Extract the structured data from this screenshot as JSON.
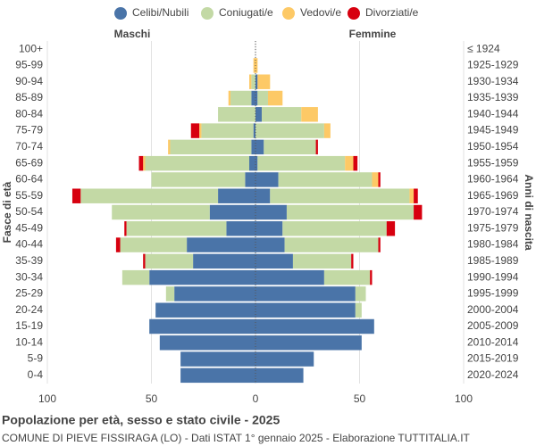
{
  "chart_data": {
    "type": "pyramid",
    "title": "Popolazione per età, sesso e stato civile - 2025",
    "subtitle": "COMUNE DI PIEVE FISSIRAGA (LO) - Dati ISTAT 1° gennaio 2025 - Elaborazione TUTTITALIA.IT",
    "left_label": "Maschi",
    "right_label": "Femmine",
    "y_label": "Fasce di età",
    "y2_label": "Anni di nascita",
    "categories": [
      "100+",
      "95-99",
      "90-94",
      "85-89",
      "80-84",
      "75-79",
      "70-74",
      "65-69",
      "60-64",
      "55-59",
      "50-54",
      "45-49",
      "40-44",
      "35-39",
      "30-34",
      "25-29",
      "20-24",
      "15-19",
      "10-14",
      "5-9",
      "0-4"
    ],
    "birth_years": [
      "≤ 1924",
      "1925-1929",
      "1930-1934",
      "1935-1939",
      "1940-1944",
      "1945-1949",
      "1950-1954",
      "1955-1959",
      "1960-1964",
      "1965-1969",
      "1970-1974",
      "1975-1979",
      "1980-1984",
      "1985-1989",
      "1990-1994",
      "1995-1999",
      "2000-2004",
      "2005-2009",
      "2010-2014",
      "2015-2019",
      "2020-2024"
    ],
    "series": [
      {
        "name": "Celibi/Nubili",
        "color": "#4a74a8",
        "male_values": [
          0,
          0,
          0,
          2,
          0,
          1,
          2,
          3,
          5,
          18,
          22,
          14,
          33,
          30,
          51,
          39,
          48,
          51,
          46,
          36,
          36
        ],
        "female_values": [
          0,
          0,
          1,
          1,
          3,
          0,
          4,
          1,
          11,
          7,
          15,
          13,
          14,
          18,
          33,
          48,
          48,
          57,
          51,
          28,
          23
        ]
      },
      {
        "name": "Coniugati/e",
        "color": "#c3d9a5",
        "male_values": [
          0,
          0,
          2,
          10,
          18,
          25,
          39,
          50,
          45,
          66,
          47,
          48,
          32,
          23,
          13,
          4,
          0,
          0,
          0,
          0,
          0
        ],
        "female_values": [
          0,
          0,
          0,
          5,
          19,
          33,
          25,
          42,
          45,
          67,
          61,
          50,
          45,
          28,
          22,
          5,
          3,
          0,
          0,
          0,
          0
        ]
      },
      {
        "name": "Vedovi/e",
        "color": "#fdc966",
        "male_values": [
          0,
          1,
          1,
          1,
          0,
          1,
          1,
          1,
          0,
          0,
          0,
          0,
          0,
          0,
          0,
          0,
          0,
          0,
          0,
          0,
          0
        ],
        "female_values": [
          0,
          1,
          6,
          7,
          8,
          3,
          0,
          4,
          3,
          2,
          0,
          0,
          0,
          0,
          0,
          0,
          0,
          0,
          0,
          0,
          0
        ]
      },
      {
        "name": "Divorziati/e",
        "color": "#d7000f",
        "male_values": [
          0,
          0,
          0,
          0,
          0,
          4,
          0,
          2,
          0,
          4,
          0,
          1,
          2,
          1,
          0,
          0,
          0,
          0,
          0,
          0,
          0
        ],
        "female_values": [
          0,
          0,
          0,
          0,
          0,
          0,
          1,
          2,
          1,
          2,
          4,
          4,
          1,
          1,
          1,
          0,
          0,
          0,
          0,
          0,
          0
        ]
      }
    ],
    "xlim": [
      -100,
      100
    ],
    "xticks": [
      {
        "value": -100,
        "label": "100"
      },
      {
        "value": -50,
        "label": "50"
      },
      0,
      50,
      100
    ],
    "grid": true
  }
}
